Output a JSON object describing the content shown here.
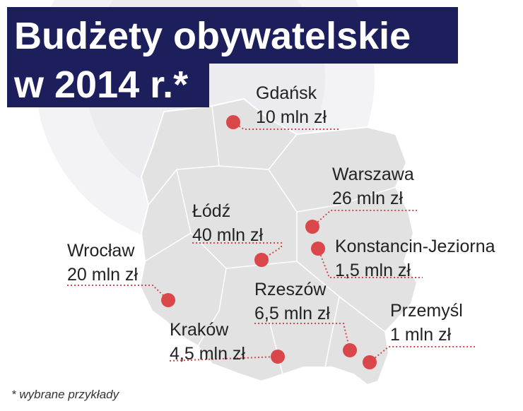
{
  "header": {
    "title_line_1": "Budżety obywatelskie",
    "title_line_2": "w 2014 r.*"
  },
  "cities": [
    {
      "name": "Gdańsk",
      "amount": "10 mln zł"
    },
    {
      "name": "Warszawa",
      "amount": "26 mln zł"
    },
    {
      "name": "Konstancin-Jeziorna",
      "amount": "1,5 mln zł"
    },
    {
      "name": "Łódź",
      "amount": "40 mln zł"
    },
    {
      "name": "Wrocław",
      "amount": "20 mln zł"
    },
    {
      "name": "Rzeszów",
      "amount": "6,5 mln zł"
    },
    {
      "name": "Przemyśl",
      "amount": "1 mln zł"
    },
    {
      "name": "Kraków",
      "amount": "4,5 mln zł"
    }
  ],
  "footnote": "* wybrane przykłady"
}
